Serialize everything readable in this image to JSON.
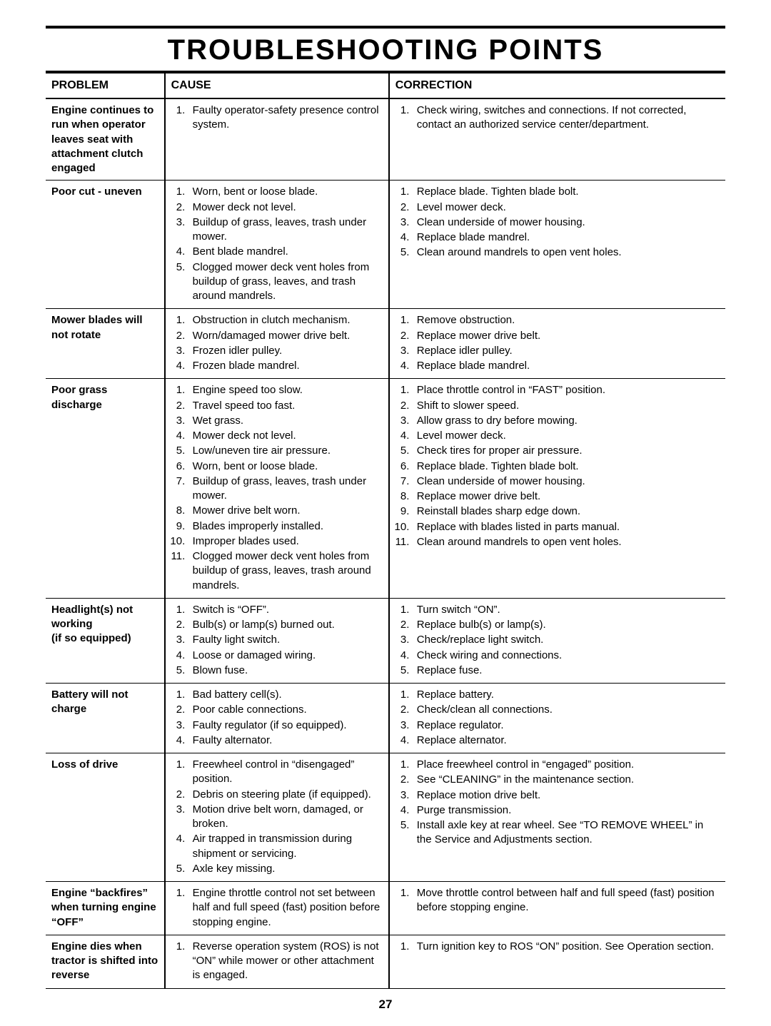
{
  "title": "TROUBLESHOOTING POINTS",
  "page_number": "27",
  "headers": {
    "problem": "PROBLEM",
    "cause": "CAUSE",
    "correction": "CORRECTION"
  },
  "rows": [
    {
      "problem": "Engine continues to run when oper­ator leaves seat with attachment clutch engaged",
      "causes": [
        "Faulty operator-safety presence control system."
      ],
      "corrections": [
        "Check wiring, switches  and connections.  If not corrected, contact an authorized service center/department."
      ]
    },
    {
      "problem": "Poor cut - uneven",
      "causes": [
        "Worn, bent or loose blade.",
        "Mower deck not level.",
        "Buildup of grass, leaves, trash under mower.",
        "Bent blade mandrel.",
        "Clogged mower deck vent holes from buildup of grass, leaves, and trash around mandrels."
      ],
      "corrections": [
        "Replace blade.  Tighten blade bolt.",
        "Level mower deck.",
        "Clean underside of mower housing.",
        "Replace blade mandrel.",
        "Clean around mandrels to open vent holes."
      ]
    },
    {
      "problem": "Mower blades will not rotate",
      "causes": [
        "Obstruction in clutch mechanism.",
        "Worn/damaged mower drive belt.",
        "Frozen idler pulley.",
        "Frozen blade mandrel."
      ],
      "corrections": [
        "Remove obstruction.",
        "Replace mower drive belt.",
        "Replace idler pulley.",
        "Replace blade mandrel."
      ]
    },
    {
      "problem": "Poor grass discharge",
      "causes": [
        "Engine speed too slow.",
        "Travel speed too fast.",
        "Wet grass.",
        "Mower deck not level.",
        "Low/uneven tire air pressure.",
        "Worn, bent or loose blade.",
        "Buildup of grass, leaves, trash under mower.",
        "Mower drive belt worn.",
        "Blades improperly installed.",
        "Improper blades used.",
        "Clogged mower deck vent holes from buildup of grass, leaves, trash around mandrels."
      ],
      "corrections": [
        "Place throttle control in “FAST” position.",
        "Shift to slower speed.",
        "Allow grass to dry before mowing.",
        "Level mower deck.",
        "Check tires for proper air pressure.",
        "Replace blade.  Tighten blade bolt.",
        "Clean underside of mower housing.",
        "Replace mower drive belt.",
        "Reinstall blades sharp edge down.",
        "Replace with blades listed in parts manual.",
        "Clean around mandrels to open vent holes."
      ]
    },
    {
      "problem": "Headlight(s) not working\n(if so equipped)",
      "causes": [
        "Switch is “OFF”.",
        "Bulb(s) or lamp(s) burned out.",
        "Faulty light switch.",
        "Loose or damaged wiring.",
        "Blown fuse."
      ],
      "corrections": [
        "Turn switch “ON”.",
        "Replace bulb(s) or lamp(s).",
        "Check/replace light switch.",
        "Check wiring and connections.",
        "Replace fuse."
      ]
    },
    {
      "problem": "Battery will not charge",
      "causes": [
        "Bad battery cell(s).",
        "Poor cable connections.",
        "Faulty regulator (if so equipped).",
        "Faulty alternator."
      ],
      "corrections": [
        "Replace battery.",
        "Check/clean all connections.",
        "Replace regulator.",
        "Replace alternator."
      ]
    },
    {
      "problem": "Loss of drive",
      "causes": [
        "Freewheel control in “disengaged” position.",
        "Debris on steering plate (if equipped).",
        "Motion drive belt worn, damaged, or broken.",
        "Air trapped in transmission during shipment or servicing.",
        "Axle key missing."
      ],
      "corrections": [
        "Place freewheel control in “engaged” position.",
        "See “CLEANING” in the maintenance section.",
        "Replace motion drive belt.",
        "Purge transmission.",
        "Install axle key at rear wheel.  See “TO REMOVE WHEEL” in the Service and Adjustments section."
      ]
    },
    {
      "problem": "Engine “back­fires” when turn­ing engine “OFF”",
      "causes": [
        "Engine throttle control not set between half and full speed (fast) position before stopping engine."
      ],
      "corrections": [
        "Move throttle control between half and full speed (fast) position before stopping engine."
      ]
    },
    {
      "problem": "Engine dies when tractor is shifted into reverse",
      "causes": [
        "Reverse operation system (ROS) is not “ON” while mower or other attachment is engaged."
      ],
      "corrections": [
        "Turn ignition key to ROS “ON” position. See Operation section."
      ]
    }
  ]
}
